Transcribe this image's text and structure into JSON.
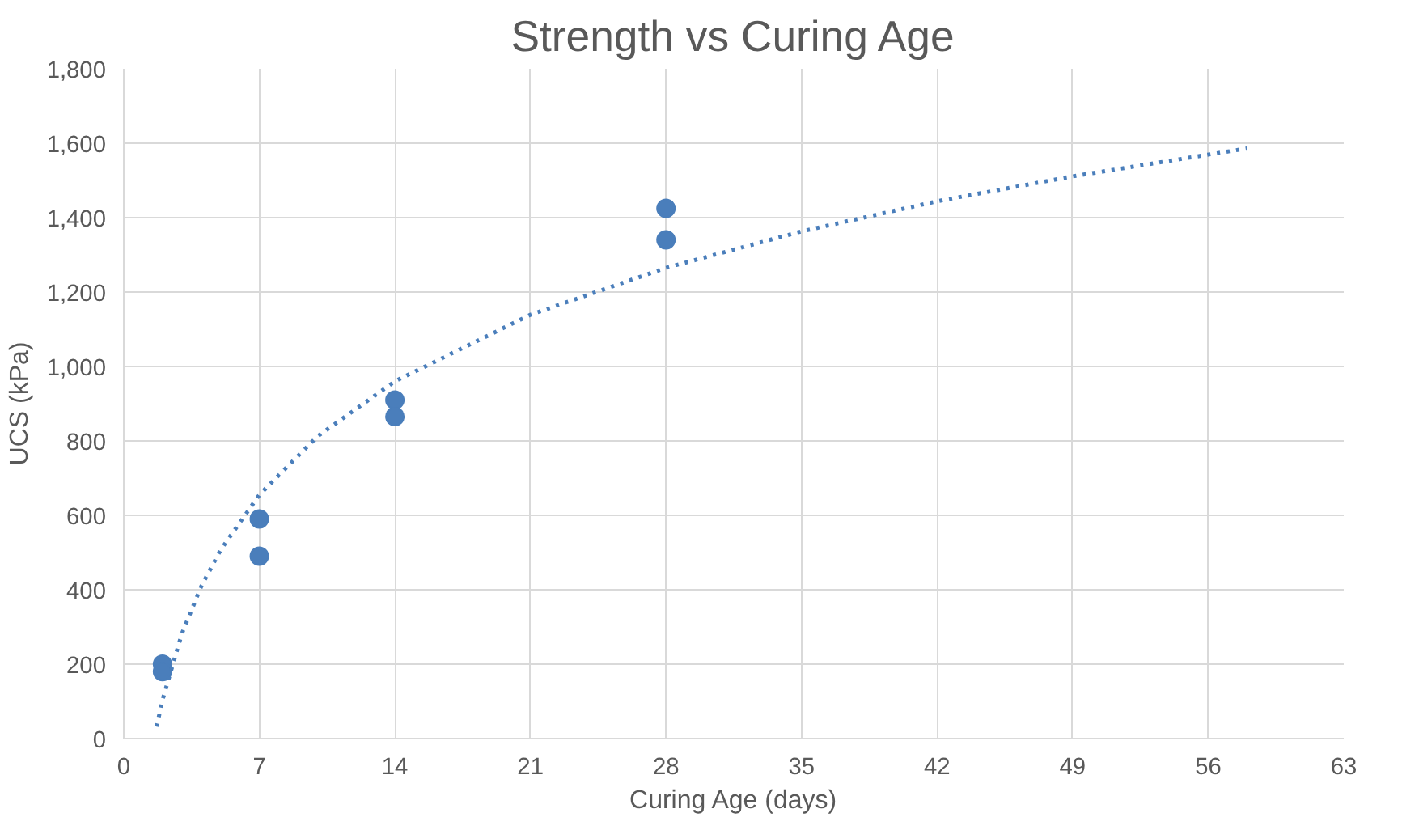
{
  "chart_data": {
    "type": "scatter",
    "title": "Strength vs Curing Age",
    "xlabel": "Curing Age (days)",
    "ylabel": "UCS (kPa)",
    "xlim": [
      0,
      63
    ],
    "xticks": [
      0,
      7,
      14,
      21,
      28,
      35,
      42,
      49,
      56,
      63
    ],
    "ylim": [
      0,
      1800
    ],
    "yticks": [
      0,
      200,
      400,
      600,
      800,
      {
        "value": 1000,
        "label": "1,000"
      },
      {
        "value": 1200,
        "label": "1,200"
      },
      {
        "value": 1400,
        "label": "1,400"
      },
      {
        "value": 1600,
        "label": "1,600"
      },
      {
        "value": 1800,
        "label": "1,800"
      }
    ],
    "grid": true,
    "series": [
      {
        "marker": "circle",
        "color": "#4a7ebb",
        "x": [
          2,
          2,
          7,
          7,
          14,
          14,
          28,
          28
        ],
        "values": [
          200,
          180,
          590,
          490,
          910,
          865,
          1425,
          1340
        ]
      },
      {
        "type": "line",
        "marker": "none",
        "color": "#4a7ebb",
        "line_style": "dotted",
        "x": [
          1.7,
          2,
          3,
          4,
          5,
          7,
          10,
          14,
          21,
          28,
          35,
          42,
          49,
          58
        ],
        "values": [
          32,
          104,
          282,
          409,
          507,
          655,
          812,
          960,
          1139,
          1265,
          1363,
          1444,
          1511,
          1586
        ]
      }
    ]
  }
}
